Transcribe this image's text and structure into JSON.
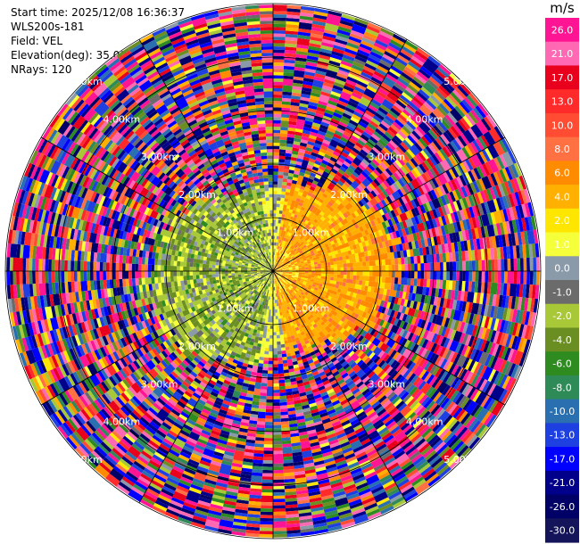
{
  "info": {
    "start_time": "Start time: 2025/12/08 16:36:37",
    "site": "WLS200s-181",
    "field": "Field: VEL",
    "elevation": "Elevation(deg): 35.00",
    "nrays": "NRays: 120"
  },
  "chart_data": {
    "type": "heatmap",
    "projection": "polar",
    "field": "VEL",
    "units": "m/s",
    "nrays": 120,
    "range_max_km": 5.0,
    "range_rings_km": [
      1.0,
      2.0,
      3.0,
      4.0,
      5.0
    ],
    "ring_labels": [
      {
        "text": "1.00km",
        "angle_deg": 135,
        "range_km": 1.0
      },
      {
        "text": "2.00km",
        "angle_deg": 135,
        "range_km": 2.0
      },
      {
        "text": "3.00km",
        "angle_deg": 135,
        "range_km": 3.0
      },
      {
        "text": "4.00km",
        "angle_deg": 135,
        "range_km": 4.0
      },
      {
        "text": "5.00km",
        "angle_deg": 135,
        "range_km": 5.0
      },
      {
        "text": "1.00km",
        "angle_deg": 45,
        "range_km": 1.0
      },
      {
        "text": "2.00km",
        "angle_deg": 45,
        "range_km": 2.0
      },
      {
        "text": "3.00km",
        "angle_deg": 45,
        "range_km": 3.0
      },
      {
        "text": "4.00km",
        "angle_deg": 45,
        "range_km": 4.0
      },
      {
        "text": "5.00km",
        "angle_deg": 45,
        "range_km": 5.0
      },
      {
        "text": "1.00km",
        "angle_deg": 315,
        "range_km": 1.0
      },
      {
        "text": "2.00km",
        "angle_deg": 315,
        "range_km": 2.0
      },
      {
        "text": "3.00km",
        "angle_deg": 315,
        "range_km": 3.0
      },
      {
        "text": "4.00km",
        "angle_deg": 315,
        "range_km": 4.0
      },
      {
        "text": "5.00km",
        "angle_deg": 315,
        "range_km": 5.0
      },
      {
        "text": "1.00km",
        "angle_deg": 225,
        "range_km": 1.0
      },
      {
        "text": "2.00km",
        "angle_deg": 225,
        "range_km": 2.0
      },
      {
        "text": "3.00km",
        "angle_deg": 225,
        "range_km": 3.0
      },
      {
        "text": "4.00km",
        "angle_deg": 225,
        "range_km": 4.0
      },
      {
        "text": "5.00km",
        "angle_deg": 225,
        "range_km": 5.0
      }
    ],
    "colorbar": {
      "title": "m/s",
      "ticks": [
        "26.0",
        "21.0",
        "17.0",
        "13.0",
        "10.0",
        "8.0",
        "6.0",
        "4.0",
        "2.0",
        "1.0",
        "0.0",
        "-1.0",
        "-2.0",
        "-4.0",
        "-6.0",
        "-8.0",
        "-10.0",
        "-13.0",
        "-17.0",
        "-21.0",
        "-26.0",
        "-30.0"
      ],
      "colors": [
        "#ff1493",
        "#ff69b4",
        "#e8001c",
        "#ff2a2a",
        "#ff4c33",
        "#ff7043",
        "#ff8c00",
        "#ffb000",
        "#ffe600",
        "#f5ff3a",
        "#8a9aa8",
        "#6b6b6b",
        "#a8c838",
        "#6b8e23",
        "#2e8b20",
        "#2e8b57",
        "#2a6fb0",
        "#1e40e0",
        "#0000ff",
        "#00008b",
        "#000066",
        "#14145a"
      ]
    },
    "regions": [
      {
        "name": "near-field yellow (positive, east half)",
        "range_km": [
          0.0,
          2.2
        ],
        "values_m_s": [
          2.0,
          6.0
        ]
      },
      {
        "name": "near-field green (negative, west half)",
        "range_km": [
          0.0,
          2.2
        ],
        "values_m_s": [
          -6.0,
          -1.0
        ]
      },
      {
        "name": "far-field noise",
        "range_km": [
          2.2,
          5.0
        ],
        "values_m_s": [
          -30.0,
          26.0
        ]
      }
    ]
  }
}
